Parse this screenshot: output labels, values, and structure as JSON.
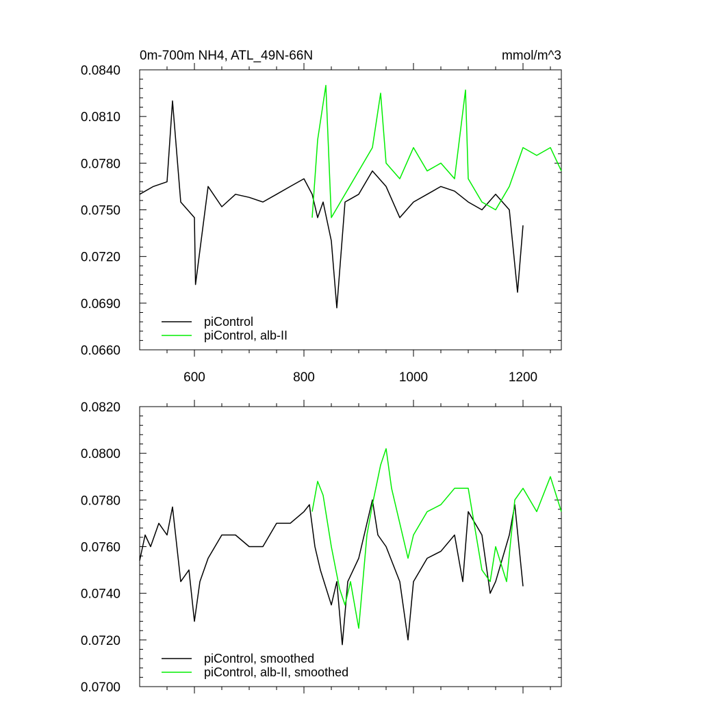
{
  "chart_data": [
    {
      "type": "line",
      "title": "0m-700m NH4, ATL_49N-66N",
      "units": "mmol/m^3",
      "xlim": [
        500,
        1270
      ],
      "ylim": [
        0.066,
        0.084
      ],
      "x_ticks": [
        600,
        800,
        1000,
        1200
      ],
      "x_tick_labels": [
        "600",
        "800",
        "1000",
        "1200"
      ],
      "y_ticks": [
        0.066,
        0.069,
        0.072,
        0.075,
        0.078,
        0.081,
        0.084
      ],
      "y_tick_labels": [
        "0.0660",
        "0.0690",
        "0.0720",
        "0.0750",
        "0.0780",
        "0.0810",
        "0.0840"
      ],
      "legend_position": "bottom-left",
      "series": [
        {
          "name": "piControl",
          "color": "#000000",
          "x": [
            500,
            525,
            550,
            560,
            575,
            600,
            602,
            625,
            650,
            675,
            700,
            725,
            750,
            775,
            800,
            815,
            825,
            835,
            850,
            860,
            875,
            900,
            925,
            950,
            975,
            1000,
            1025,
            1050,
            1075,
            1100,
            1125,
            1150,
            1175,
            1190,
            1200
          ],
          "y": [
            0.076,
            0.0765,
            0.0768,
            0.082,
            0.0755,
            0.0745,
            0.0702,
            0.0765,
            0.0752,
            0.076,
            0.0758,
            0.0755,
            0.076,
            0.0765,
            0.077,
            0.076,
            0.0745,
            0.0755,
            0.073,
            0.0687,
            0.0755,
            0.076,
            0.0775,
            0.0765,
            0.0745,
            0.0755,
            0.076,
            0.0765,
            0.0762,
            0.0755,
            0.075,
            0.076,
            0.075,
            0.0697,
            0.074
          ]
        },
        {
          "name": "piControl, alb-II",
          "color": "#00ee00",
          "x": [
            815,
            825,
            840,
            850,
            875,
            900,
            925,
            940,
            950,
            975,
            1000,
            1025,
            1050,
            1075,
            1095,
            1100,
            1125,
            1150,
            1175,
            1200,
            1225,
            1250,
            1270
          ],
          "y": [
            0.0745,
            0.0795,
            0.083,
            0.0745,
            0.076,
            0.0775,
            0.079,
            0.0825,
            0.078,
            0.077,
            0.079,
            0.0775,
            0.078,
            0.077,
            0.0827,
            0.077,
            0.0755,
            0.075,
            0.0765,
            0.079,
            0.0785,
            0.079,
            0.0775
          ]
        }
      ]
    },
    {
      "type": "line",
      "title": "",
      "xlim": [
        500,
        1270
      ],
      "ylim": [
        0.07,
        0.082
      ],
      "x_ticks": [
        600,
        800,
        1000,
        1200
      ],
      "y_ticks": [
        0.07,
        0.072,
        0.074,
        0.076,
        0.078,
        0.08,
        0.082
      ],
      "y_tick_labels": [
        "0.0700",
        "0.0720",
        "0.0740",
        "0.0760",
        "0.0780",
        "0.0800",
        "0.0820"
      ],
      "legend_position": "bottom-left",
      "series": [
        {
          "name": "piControl, smoothed",
          "color": "#000000",
          "x": [
            500,
            510,
            520,
            535,
            550,
            560,
            575,
            590,
            600,
            610,
            625,
            650,
            675,
            700,
            725,
            750,
            775,
            800,
            810,
            820,
            830,
            850,
            860,
            870,
            880,
            900,
            925,
            935,
            950,
            975,
            990,
            1000,
            1025,
            1050,
            1075,
            1090,
            1100,
            1125,
            1140,
            1150,
            1175,
            1185,
            1200
          ],
          "y": [
            0.0754,
            0.0765,
            0.076,
            0.077,
            0.0765,
            0.0777,
            0.0745,
            0.075,
            0.0728,
            0.0745,
            0.0755,
            0.0765,
            0.0765,
            0.076,
            0.076,
            0.077,
            0.077,
            0.0775,
            0.0778,
            0.076,
            0.075,
            0.0735,
            0.0745,
            0.0718,
            0.0745,
            0.0755,
            0.078,
            0.0765,
            0.076,
            0.0745,
            0.072,
            0.0745,
            0.0755,
            0.0758,
            0.0765,
            0.0745,
            0.0775,
            0.0765,
            0.074,
            0.0745,
            0.0765,
            0.0778,
            0.0743
          ]
        },
        {
          "name": "piControl, alb-II, smoothed",
          "color": "#00ee00",
          "x": [
            815,
            825,
            835,
            850,
            865,
            875,
            885,
            900,
            915,
            925,
            940,
            950,
            960,
            975,
            990,
            1000,
            1025,
            1050,
            1075,
            1100,
            1125,
            1140,
            1150,
            1170,
            1185,
            1200,
            1225,
            1250,
            1270
          ],
          "y": [
            0.0775,
            0.0788,
            0.0782,
            0.076,
            0.0742,
            0.0735,
            0.0745,
            0.0725,
            0.0765,
            0.0778,
            0.0795,
            0.0802,
            0.0785,
            0.077,
            0.0755,
            0.0765,
            0.0775,
            0.0778,
            0.0785,
            0.0785,
            0.075,
            0.0745,
            0.076,
            0.0745,
            0.078,
            0.0785,
            0.0775,
            0.079,
            0.0775
          ]
        }
      ]
    }
  ]
}
